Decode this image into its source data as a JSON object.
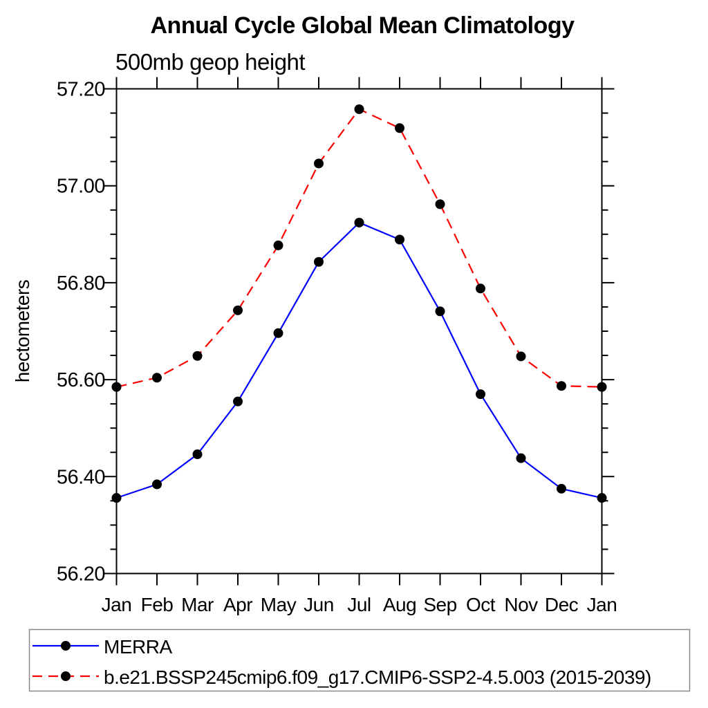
{
  "title": "Annual Cycle Global Mean Climatology",
  "subtitle": "500mb geop height",
  "y_axis": {
    "label": "hectometers",
    "tick_labels": [
      "56.20",
      "56.40",
      "56.60",
      "56.80",
      "57.00",
      "57.20"
    ]
  },
  "x_axis": {
    "tick_labels": [
      "Jan",
      "Feb",
      "Mar",
      "Apr",
      "May",
      "Jun",
      "Jul",
      "Aug",
      "Sep",
      "Oct",
      "Nov",
      "Dec",
      "Jan"
    ]
  },
  "colors": {
    "merra_line": "#0000ff",
    "model_line": "#ff0000",
    "marker": "#000000",
    "axis": "#000000",
    "legend_border": "#888888"
  },
  "legend": {
    "items": [
      {
        "label": "MERRA",
        "line_color": "#0000ff",
        "line_style": "solid",
        "marker": "black-dot"
      },
      {
        "label": "b.e21.BSSP245cmip6.f09_g17.CMIP6-SSP2-4.5.003 (2015-2039)",
        "line_color": "#ff0000",
        "line_style": "dashed",
        "marker": "black-dot"
      }
    ]
  },
  "chart_data": {
    "type": "line",
    "title": "Annual Cycle Global Mean Climatology",
    "subtitle": "500mb geop height",
    "xlabel": "",
    "ylabel": "hectometers",
    "categories": [
      "Jan",
      "Feb",
      "Mar",
      "Apr",
      "May",
      "Jun",
      "Jul",
      "Aug",
      "Sep",
      "Oct",
      "Nov",
      "Dec",
      "Jan"
    ],
    "series": [
      {
        "name": "MERRA",
        "color": "#0000ff",
        "line_style": "solid",
        "marker": "black-dot",
        "values": [
          56.356,
          56.384,
          56.446,
          56.555,
          56.696,
          56.843,
          56.924,
          56.889,
          56.741,
          56.57,
          56.438,
          56.375,
          56.356
        ]
      },
      {
        "name": "b.e21.BSSP245cmip6.f09_g17.CMIP6-SSP2-4.5.003 (2015-2039)",
        "color": "#ff0000",
        "line_style": "dashed",
        "marker": "black-dot",
        "values": [
          56.585,
          56.604,
          56.649,
          56.743,
          56.877,
          57.046,
          57.158,
          57.119,
          56.962,
          56.788,
          56.648,
          56.587,
          56.585
        ]
      }
    ],
    "ylim": [
      56.2,
      57.2
    ],
    "ytick_major_step": 0.2,
    "ytick_minor_step": 0.05,
    "grid": false,
    "legend_position": "bottom",
    "frame": "box-all-sides"
  }
}
